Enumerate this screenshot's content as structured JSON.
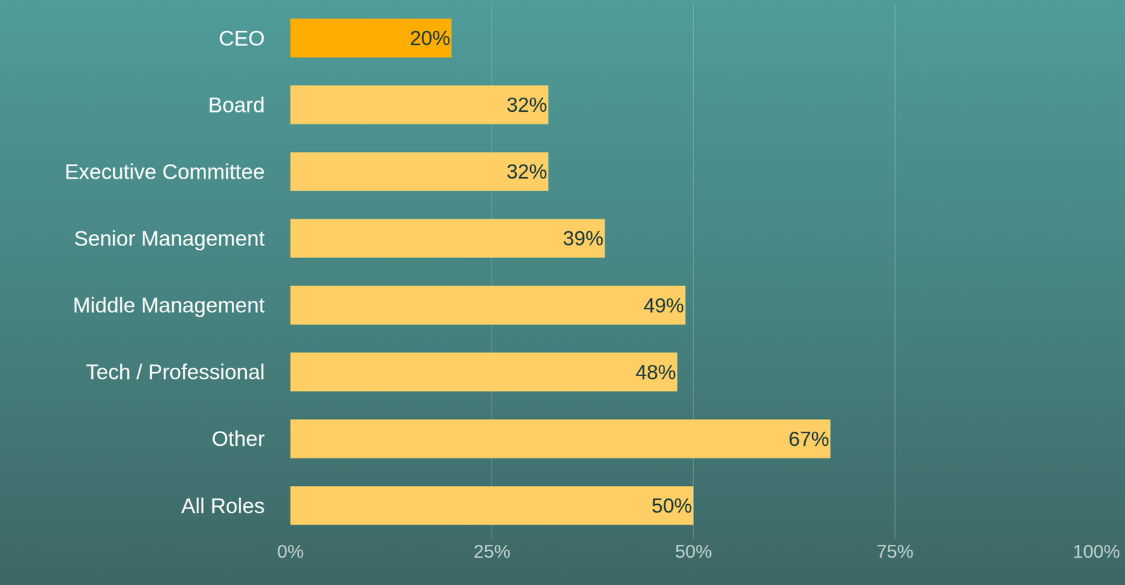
{
  "chart_data": {
    "type": "bar",
    "orientation": "horizontal",
    "categories": [
      "CEO",
      "Board",
      "Executive Committee",
      "Senior Management",
      "Middle Management",
      "Tech / Professional",
      "Other",
      "All Roles"
    ],
    "values": [
      20,
      32,
      32,
      39,
      49,
      48,
      67,
      50
    ],
    "value_labels": [
      "20%",
      "32%",
      "32%",
      "39%",
      "49%",
      "48%",
      "67%",
      "50%"
    ],
    "colors": [
      "#ffad00",
      "#ffcf66",
      "#ffcf66",
      "#ffcf66",
      "#ffcf66",
      "#ffcf66",
      "#ffcf66",
      "#ffcf66"
    ],
    "xlim": [
      0,
      100
    ],
    "xticks": [
      {
        "value": 0,
        "label": "0%"
      },
      {
        "value": 25,
        "label": "25%"
      },
      {
        "value": 50,
        "label": "50%"
      },
      {
        "value": 75,
        "label": "75%"
      },
      {
        "value": 100,
        "label": "100%"
      }
    ],
    "grid": true,
    "data_labels": true
  }
}
